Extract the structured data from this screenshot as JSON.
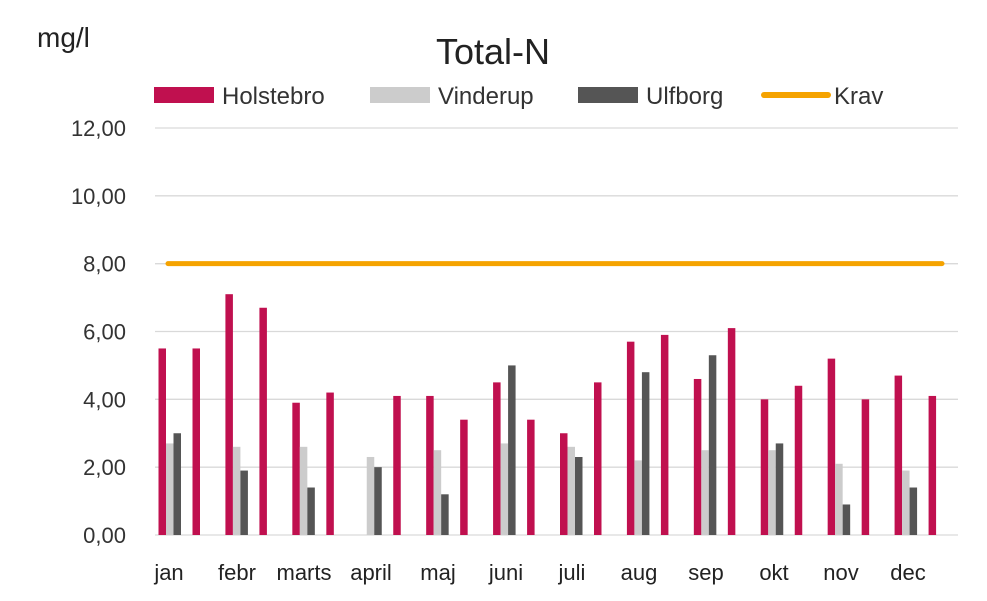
{
  "chart_data": {
    "type": "bar",
    "title": "Total-N",
    "ylabel": "mg/l",
    "xlabel": "",
    "ylim": [
      0,
      12
    ],
    "yticks": [
      "0,00",
      "2,00",
      "4,00",
      "6,00",
      "8,00",
      "10,00",
      "12,00"
    ],
    "ytick_values": [
      0,
      2,
      4,
      6,
      8,
      10,
      12
    ],
    "grid": true,
    "legend_position": "top",
    "categories": [
      "jan",
      "febr",
      "marts",
      "april",
      "maj",
      "juni",
      "juli",
      "aug",
      "sep",
      "okt",
      "nov",
      "dec"
    ],
    "series": [
      {
        "name": "Holstebro",
        "color": "#c0104f",
        "bars_per_category": 2,
        "values": [
          [
            5.5,
            5.5
          ],
          [
            7.1,
            6.7
          ],
          [
            3.9,
            4.2
          ],
          [
            null,
            4.1
          ],
          [
            4.1,
            3.4
          ],
          [
            4.5,
            3.4
          ],
          [
            3.0,
            4.5
          ],
          [
            5.7,
            5.9
          ],
          [
            4.6,
            6.1
          ],
          [
            4.0,
            4.4
          ],
          [
            5.2,
            4.0
          ],
          [
            4.7,
            4.1
          ]
        ]
      },
      {
        "name": "Vinderup",
        "color": "#cccccc",
        "values": [
          2.7,
          2.6,
          2.6,
          2.3,
          2.5,
          2.7,
          2.6,
          2.2,
          2.5,
          2.5,
          2.1,
          1.9
        ]
      },
      {
        "name": "Ulfborg",
        "color": "#555555",
        "values": [
          3.0,
          1.9,
          1.4,
          2.0,
          1.2,
          5.0,
          2.3,
          4.8,
          5.3,
          2.7,
          0.9,
          1.4
        ]
      },
      {
        "name": "Krav",
        "type": "line",
        "color": "#f5a300",
        "value": 8.0
      }
    ]
  }
}
